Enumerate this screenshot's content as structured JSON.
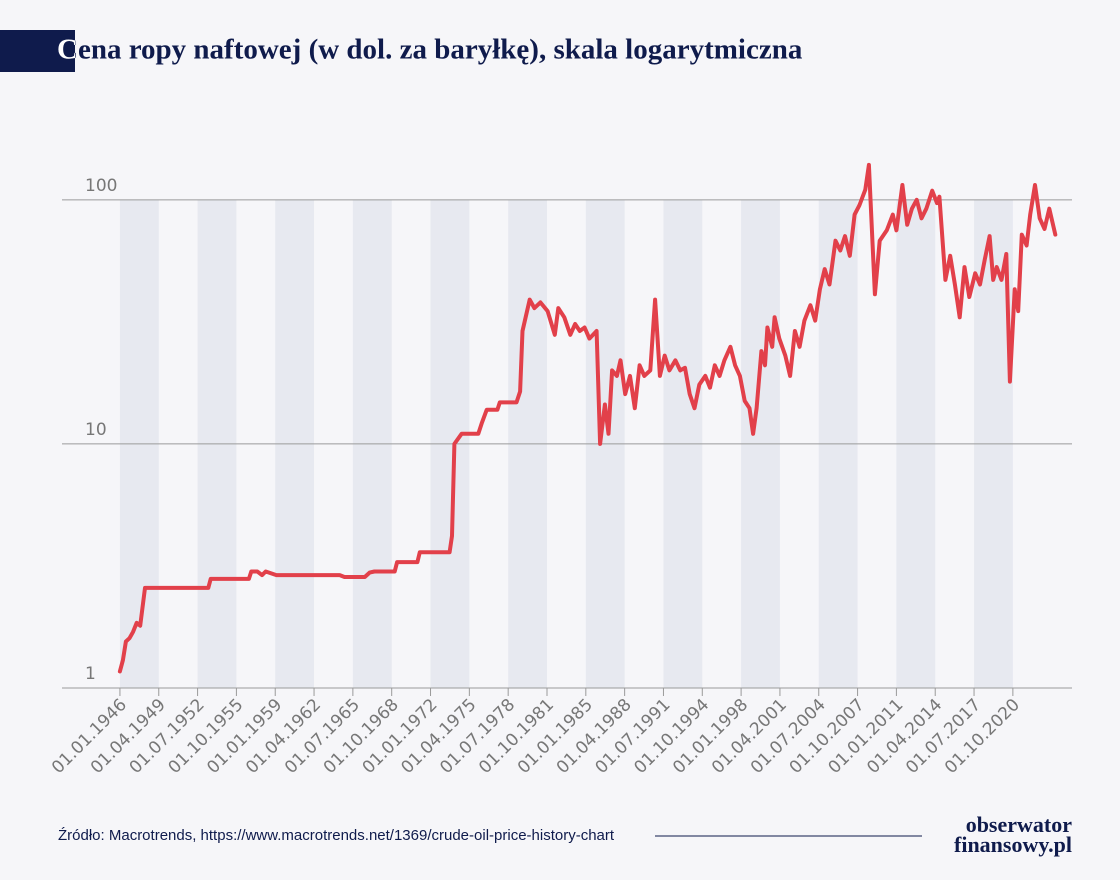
{
  "chart_data": {
    "type": "line",
    "title": "Cena ropy naftowej (w dol. za baryłkę), skala logarytmiczna",
    "source": "Źródło: Macrotrends, https://www.macrotrends.net/1369/crude-oil-price-history-chart",
    "logo": [
      "obserwator",
      "finansowy.pl"
    ],
    "color": "#e2404a",
    "log_scale": true,
    "grid": true,
    "xlim": [
      1941.15,
      2025.7
    ],
    "ylim": [
      1,
      160
    ],
    "yticks": [
      1,
      10,
      100
    ],
    "xticks": [
      {
        "value": 1946.0,
        "label": "01.01.1946"
      },
      {
        "value": 1949.25,
        "label": "01.04.1949"
      },
      {
        "value": 1952.5,
        "label": "01.07.1952"
      },
      {
        "value": 1955.75,
        "label": "01.10.1955"
      },
      {
        "value": 1959.0,
        "label": "01.01.1959"
      },
      {
        "value": 1962.25,
        "label": "01.04.1962"
      },
      {
        "value": 1965.5,
        "label": "01.07.1965"
      },
      {
        "value": 1968.75,
        "label": "01.10.1968"
      },
      {
        "value": 1972.0,
        "label": "01.01.1972"
      },
      {
        "value": 1975.25,
        "label": "01.04.1975"
      },
      {
        "value": 1978.5,
        "label": "01.07.1978"
      },
      {
        "value": 1981.75,
        "label": "01.10.1981"
      },
      {
        "value": 1985.0,
        "label": "01.01.1985"
      },
      {
        "value": 1988.25,
        "label": "01.04.1988"
      },
      {
        "value": 1991.5,
        "label": "01.07.1991"
      },
      {
        "value": 1994.75,
        "label": "01.10.1994"
      },
      {
        "value": 1998.0,
        "label": "01.01.1998"
      },
      {
        "value": 2001.25,
        "label": "01.04.2001"
      },
      {
        "value": 2004.5,
        "label": "01.07.2004"
      },
      {
        "value": 2007.75,
        "label": "01.10.2007"
      },
      {
        "value": 2011.0,
        "label": "01.01.2011"
      },
      {
        "value": 2014.25,
        "label": "01.04.2014"
      },
      {
        "value": 2017.5,
        "label": "01.07.2017"
      },
      {
        "value": 2020.75,
        "label": "01.10.2020"
      }
    ],
    "x": [
      1946.0,
      1946.25,
      1946.5,
      1946.8,
      1947.1,
      1947.4,
      1947.7,
      1948.1,
      1953.4,
      1953.6,
      1956.8,
      1957.0,
      1957.5,
      1957.9,
      1958.2,
      1959.1,
      1964.4,
      1964.8,
      1966.5,
      1966.9,
      1967.3,
      1969.0,
      1969.2,
      1970.9,
      1971.1,
      1973.6,
      1973.8,
      1974.0,
      1974.6,
      1976.0,
      1976.3,
      1976.7,
      1977.6,
      1977.8,
      1979.2,
      1979.5,
      1979.7,
      1980.3,
      1980.7,
      1981.2,
      1981.8,
      1982.4,
      1982.7,
      1983.2,
      1983.7,
      1984.1,
      1984.5,
      1984.9,
      1985.3,
      1985.9,
      1986.2,
      1986.6,
      1986.9,
      1987.2,
      1987.6,
      1987.9,
      1988.3,
      1988.7,
      1989.1,
      1989.5,
      1989.9,
      1990.4,
      1990.8,
      1991.2,
      1991.6,
      1992.0,
      1992.5,
      1992.9,
      1993.3,
      1993.7,
      1994.1,
      1994.5,
      1995.0,
      1995.4,
      1995.8,
      1996.2,
      1996.6,
      1997.1,
      1997.5,
      1997.9,
      1998.3,
      1998.7,
      1999.0,
      1999.3,
      1999.7,
      2000.0,
      2000.2,
      2000.6,
      2000.8,
      2001.2,
      2001.7,
      2002.1,
      2002.5,
      2002.9,
      2003.3,
      2003.8,
      2004.2,
      2004.6,
      2005.0,
      2005.4,
      2005.9,
      2006.3,
      2006.7,
      2007.1,
      2007.5,
      2007.9,
      2008.4,
      2008.7,
      2009.2,
      2009.6,
      2010.2,
      2010.7,
      2011.0,
      2011.5,
      2011.9,
      2012.3,
      2012.7,
      2013.1,
      2013.5,
      2014.0,
      2014.4,
      2014.6,
      2015.1,
      2015.5,
      2015.9,
      2016.3,
      2016.7,
      2017.1,
      2017.6,
      2018.0,
      2018.4,
      2018.8,
      2019.1,
      2019.4,
      2019.8,
      2020.2,
      2020.5,
      2020.9,
      2021.2,
      2021.5,
      2021.9,
      2022.2,
      2022.6,
      2023.0,
      2023.4,
      2023.8,
      2024.3
    ],
    "values": [
      1.17,
      1.3,
      1.55,
      1.6,
      1.7,
      1.85,
      1.8,
      2.57,
      2.57,
      2.8,
      2.8,
      3.0,
      3.0,
      2.9,
      3.0,
      2.9,
      2.9,
      2.85,
      2.85,
      2.97,
      3.0,
      3.0,
      3.28,
      3.28,
      3.6,
      3.6,
      4.2,
      10,
      11,
      11,
      12.2,
      13.8,
      13.8,
      14.8,
      14.8,
      16.4,
      29,
      39,
      36,
      38,
      35,
      28,
      36,
      33,
      28,
      31,
      29,
      30,
      27,
      29,
      10,
      14.5,
      11,
      20,
      19,
      22,
      16,
      19,
      14,
      21,
      19,
      20,
      39,
      19,
      23,
      20,
      22,
      20,
      20.5,
      16,
      14,
      17.5,
      19,
      17,
      21,
      19,
      22,
      25,
      21,
      19,
      15,
      14,
      11,
      14,
      24,
      21,
      30,
      25,
      33,
      27,
      23,
      19,
      29,
      25,
      32,
      37,
      32,
      43,
      52,
      45,
      68,
      62,
      71,
      59,
      87,
      95,
      110,
      139,
      41,
      68,
      75,
      87,
      75,
      115,
      79,
      92,
      100,
      84,
      92,
      109,
      97,
      103,
      47,
      59,
      45,
      33,
      53,
      40,
      50,
      45,
      57,
      71,
      47,
      53,
      47,
      60,
      18,
      43,
      35,
      72,
      65,
      87,
      115,
      84,
      76,
      92,
      72
    ]
  }
}
